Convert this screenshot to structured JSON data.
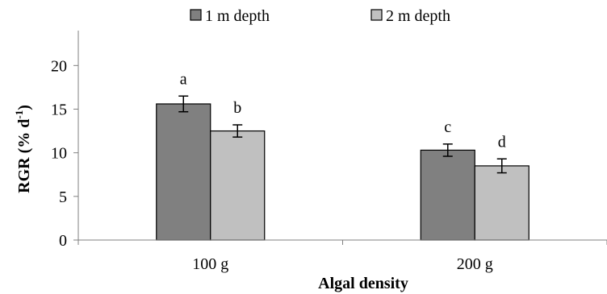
{
  "chart_data": {
    "type": "bar",
    "title": "",
    "xlabel": "Algal density",
    "ylabel_main": "RGR  (% d",
    "ylabel_sup": "-1",
    "ylabel_close": ")",
    "ylim": [
      0,
      24
    ],
    "yticks": [
      0,
      5,
      10,
      15,
      20
    ],
    "grid": false,
    "legend_position": "top",
    "categories": [
      "100 g",
      "200 g"
    ],
    "series": [
      {
        "name": "1 m depth",
        "color": "#808080",
        "values": [
          15.6,
          10.3
        ],
        "errors": [
          0.9,
          0.7
        ],
        "labels": [
          "a",
          "c"
        ]
      },
      {
        "name": "2 m depth",
        "color": "#c0c0c0",
        "values": [
          12.5,
          8.5
        ],
        "errors": [
          0.7,
          0.8
        ],
        "labels": [
          "b",
          "d"
        ]
      }
    ]
  }
}
